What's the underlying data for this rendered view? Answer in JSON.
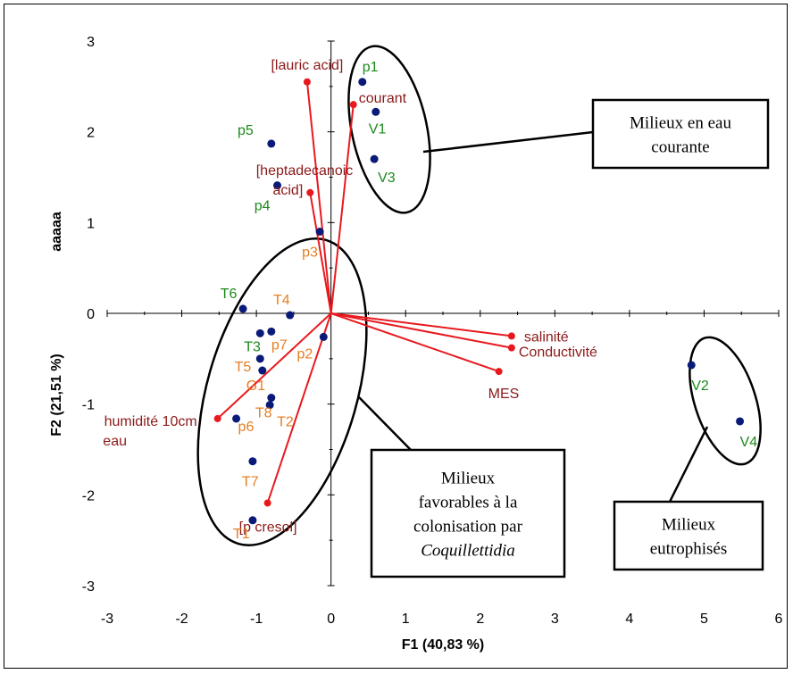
{
  "chart_data": {
    "type": "scatter",
    "title": "",
    "xlabel": "F1 (40,83 %)",
    "ylabel": "F2 (21,51 %)",
    "y_axis_extra_label": "aaaaa",
    "xlim": [
      -3,
      6
    ],
    "ylim": [
      -3,
      3
    ],
    "x_ticks": [
      "-3",
      "-2",
      "-1",
      "0",
      "1",
      "2",
      "3",
      "4",
      "5",
      "6"
    ],
    "y_ticks": [
      "-3",
      "-2",
      "-1",
      "0",
      "1",
      "2",
      "3"
    ],
    "grid": false,
    "legend": "none",
    "series": [
      {
        "kind": "observations",
        "color": "#0a1a78",
        "points": [
          {
            "label": "p1",
            "x": 0.42,
            "y": 2.55,
            "color": "#1b8a1b"
          },
          {
            "label": "V1",
            "x": 0.6,
            "y": 2.22,
            "color": "#1b8a1b"
          },
          {
            "label": "V3",
            "x": 0.58,
            "y": 1.7,
            "color": "#1b8a1b"
          },
          {
            "label": "p5",
            "x": -0.8,
            "y": 1.87,
            "color": "#1b8a1b"
          },
          {
            "label": "p4",
            "x": -0.72,
            "y": 1.41,
            "color": "#1b8a1b"
          },
          {
            "label": "p3",
            "x": -0.15,
            "y": 0.9,
            "color": "#e67e22"
          },
          {
            "label": "T6",
            "x": -1.18,
            "y": 0.05,
            "color": "#1b8a1b"
          },
          {
            "label": "T4",
            "x": -0.55,
            "y": -0.02,
            "color": "#e67e22"
          },
          {
            "label": "T3",
            "x": -0.95,
            "y": -0.22,
            "color": "#1b8a1b"
          },
          {
            "label": "p7",
            "x": -0.8,
            "y": -0.2,
            "color": "#e67e22"
          },
          {
            "label": "p2",
            "x": -0.1,
            "y": -0.26,
            "color": "#e67e22"
          },
          {
            "label": "T5",
            "x": -0.95,
            "y": -0.5,
            "color": "#e67e22"
          },
          {
            "label": "G1",
            "x": -0.92,
            "y": -0.63,
            "color": "#e67e22"
          },
          {
            "label": "T8",
            "x": -0.8,
            "y": -0.93,
            "color": "#e67e22"
          },
          {
            "label": "T2",
            "x": -0.82,
            "y": -1.01,
            "color": "#e67e22"
          },
          {
            "label": "p6",
            "x": -1.27,
            "y": -1.16,
            "color": "#e67e22"
          },
          {
            "label": "T7",
            "x": -1.05,
            "y": -1.63,
            "color": "#e67e22"
          },
          {
            "label": "T1",
            "x": -1.05,
            "y": -2.28,
            "color": "#e67e22"
          },
          {
            "label": "V2",
            "x": 4.83,
            "y": -0.57,
            "color": "#1b8a1b"
          },
          {
            "label": "V4",
            "x": 5.48,
            "y": -1.19,
            "color": "#1b8a1b"
          }
        ]
      },
      {
        "kind": "variables",
        "color": "#e8191e",
        "points": [
          {
            "label": "[lauric acid]",
            "x": -0.32,
            "y": 2.55,
            "color": "#8b1a1a"
          },
          {
            "label": "courant",
            "x": 0.3,
            "y": 2.3,
            "color": "#8b1a1a"
          },
          {
            "label": "[heptadecanoic acid]",
            "x": -0.28,
            "y": 1.33,
            "color": "#8b1a1a"
          },
          {
            "label": "salinité",
            "x": 2.42,
            "y": -0.25,
            "color": "#8b1a1a"
          },
          {
            "label": "Conductivité",
            "x": 2.42,
            "y": -0.38,
            "color": "#8b1a1a"
          },
          {
            "label": "MES",
            "x": 2.25,
            "y": -0.64,
            "color": "#8b1a1a"
          },
          {
            "label": "humidité 10cm eau",
            "x": -1.52,
            "y": -1.16,
            "color": "#8b1a1a"
          },
          {
            "label": "[p cresol]",
            "x": -0.85,
            "y": -2.09,
            "color": "#8b1a1a"
          }
        ]
      }
    ],
    "groups": [
      {
        "label_lines": [
          "Milieux en eau",
          "courante"
        ]
      },
      {
        "label_lines": [
          "Milieux",
          "favorables à la",
          "colonisation par",
          "Coquillettidia"
        ]
      },
      {
        "label_lines": [
          "Milieux",
          "eutrophisés"
        ]
      }
    ]
  }
}
